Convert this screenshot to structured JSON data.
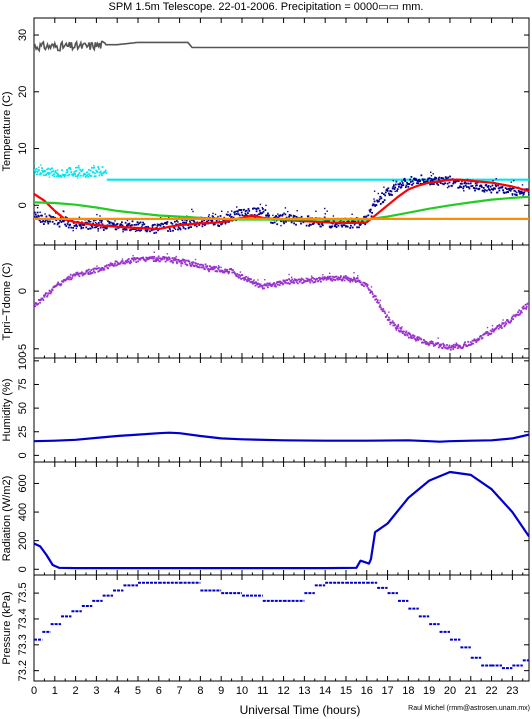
{
  "figure": {
    "title": "SPM 1.5m Telescope. 22-01-2006. Precipitation = 0000▭▭ mm.",
    "xlabel": "Universal Time (hours)",
    "credit": "Raul Michel  (rmm@astrosen.unam.mx)"
  },
  "chart_data": [
    {
      "type": "line",
      "ylabel": "Temperature (C)",
      "xlim": [
        0,
        23.8
      ],
      "ylim": [
        -7,
        33
      ],
      "yticks": [
        0,
        10,
        20,
        30
      ],
      "xticks": [
        0,
        1,
        2,
        3,
        4,
        5,
        6,
        7,
        8,
        9,
        10,
        11,
        12,
        13,
        14,
        15,
        16,
        17,
        18,
        19,
        20,
        21,
        22,
        23
      ],
      "series": [
        {
          "color": "#555555",
          "style": "noisy",
          "x": [
            0,
            0.5,
            1,
            1.5,
            2,
            2.5,
            3,
            3.5,
            4,
            4.5,
            5,
            5.5,
            6,
            6.5,
            7,
            7.4,
            7.6,
            8,
            10,
            12,
            14,
            16,
            18,
            20,
            22,
            23.8
          ],
          "y": [
            28,
            28,
            28,
            28,
            28,
            28,
            28.2,
            28.3,
            28.3,
            28.5,
            28.7,
            28.7,
            28.7,
            28.7,
            28.7,
            28.7,
            27.8,
            27.8,
            27.8,
            27.8,
            27.8,
            27.8,
            27.8,
            27.8,
            27.8,
            27.8
          ]
        },
        {
          "color": "#00e5ee",
          "style": "dots",
          "x": [
            0,
            0.5,
            1,
            1.5,
            2,
            2.5,
            3,
            3.3,
            3.5
          ],
          "y": [
            5.8,
            5.9,
            5.7,
            5.8,
            5.9,
            5.7,
            5.9,
            6.0,
            5.6
          ]
        },
        {
          "color": "#00e5ee",
          "style": "line",
          "x": [
            3.5,
            23.8
          ],
          "y": [
            4.5,
            4.5
          ]
        },
        {
          "color": "#00008b",
          "style": "scatter",
          "x": [
            0,
            0.5,
            1,
            1.5,
            2,
            3,
            4,
            5,
            5.5,
            6,
            6.5,
            7,
            8,
            9,
            10,
            10.5,
            11,
            11.5,
            12,
            13,
            14,
            15,
            15.5,
            16,
            16.5,
            17,
            17.5,
            18,
            18.5,
            19,
            20,
            21,
            22,
            23,
            23.8
          ],
          "y": [
            -2,
            -2.5,
            -2.8,
            -3,
            -3.2,
            -3.5,
            -3.5,
            -3.8,
            -4,
            -4.2,
            -3.8,
            -3.5,
            -3,
            -2.8,
            -1.5,
            -1.2,
            -1.5,
            -2.5,
            -2.5,
            -2.8,
            -3,
            -3.2,
            -3.2,
            -2.5,
            0.5,
            2,
            3.5,
            4,
            4.5,
            4.5,
            4.2,
            3.5,
            3,
            2.5,
            2
          ]
        },
        {
          "color": "#ff0000",
          "style": "line",
          "x": [
            0,
            0.5,
            1,
            1.5,
            2,
            3,
            4,
            5,
            5.5,
            6,
            6.5,
            7,
            8,
            9,
            10,
            10.5,
            11,
            12,
            13,
            14,
            15,
            15.5,
            16,
            16.5,
            17,
            17.5,
            18,
            18.5,
            19,
            19.5,
            20,
            20.5,
            21,
            22,
            23,
            23.8
          ],
          "y": [
            2,
            0.8,
            -1,
            -2.5,
            -3,
            -3.5,
            -3.8,
            -4,
            -4.1,
            -4.2,
            -3.8,
            -3.5,
            -3.2,
            -3,
            -2.2,
            -1.8,
            -2.2,
            -2.6,
            -2.8,
            -3,
            -3.1,
            -3.1,
            -3,
            -1.5,
            0,
            1.5,
            2.8,
            3.5,
            4,
            4.2,
            4.5,
            4.5,
            4.3,
            4,
            3.3,
            2.5
          ]
        },
        {
          "color": "#22cc22",
          "style": "line",
          "x": [
            0,
            1,
            2,
            3,
            4,
            5,
            6,
            7,
            8,
            9,
            10,
            12,
            14,
            16,
            17,
            18,
            19,
            20,
            21,
            22,
            23,
            23.8
          ],
          "y": [
            0.5,
            0.4,
            0.1,
            -0.4,
            -1,
            -1.4,
            -1.8,
            -2,
            -2.2,
            -2.4,
            -2.5,
            -2.5,
            -2.5,
            -2.5,
            -2,
            -1.3,
            -0.6,
            0,
            0.5,
            1,
            1.3,
            1.5
          ]
        },
        {
          "color": "#ff8c00",
          "style": "line",
          "x": [
            0,
            2,
            4,
            6,
            8,
            10,
            12,
            14,
            16,
            18,
            20,
            22,
            23.8
          ],
          "y": [
            -2.4,
            -2.4,
            -2.4,
            -2.4,
            -2.4,
            -2.4,
            -2.4,
            -2.4,
            -2.4,
            -2.4,
            -2.4,
            -2.4,
            -2.4
          ]
        }
      ]
    },
    {
      "type": "scatter",
      "ylabel": "Tpri−Tdome (C)",
      "xlim": [
        0,
        23.8
      ],
      "ylim": [
        -5.8,
        4
      ],
      "yticks": [
        -5,
        0
      ],
      "xticks": [
        0,
        1,
        2,
        3,
        4,
        5,
        6,
        7,
        8,
        9,
        10,
        11,
        12,
        13,
        14,
        15,
        16,
        17,
        18,
        19,
        20,
        21,
        22,
        23
      ],
      "series": [
        {
          "color": "#9932cc",
          "style": "scatter",
          "x": [
            0,
            0.5,
            1,
            1.5,
            2,
            2.5,
            3,
            3.5,
            4,
            4.5,
            5,
            5.5,
            6,
            6.5,
            7,
            7.5,
            8,
            8.5,
            9,
            9.5,
            10,
            10.5,
            11,
            11.5,
            12,
            13,
            14,
            15,
            15.5,
            16,
            16.5,
            17,
            17.5,
            18,
            18.5,
            19,
            19.5,
            20,
            20.5,
            21,
            21.5,
            22,
            22.5,
            23,
            23.5,
            23.8
          ],
          "y": [
            -1.3,
            -0.5,
            0.3,
            1,
            1.4,
            1.6,
            1.8,
            2.1,
            2.4,
            2.6,
            2.7,
            2.8,
            2.8,
            2.7,
            2.6,
            2.4,
            2.2,
            2,
            1.8,
            1.7,
            1.2,
            0.8,
            0.4,
            0.5,
            0.8,
            0.9,
            1,
            1.1,
            1,
            0.5,
            -0.8,
            -2.3,
            -3.2,
            -3.8,
            -4.2,
            -4.5,
            -4.7,
            -4.9,
            -4.8,
            -4.5,
            -4,
            -3.5,
            -3,
            -2.4,
            -1.6,
            -1.2
          ]
        }
      ]
    },
    {
      "type": "line",
      "ylabel": "Humidity (%)",
      "xlim": [
        0,
        23.8
      ],
      "ylim": [
        -7,
        103
      ],
      "yticks": [
        0,
        25,
        50,
        75,
        100
      ],
      "xticks": [
        0,
        1,
        2,
        3,
        4,
        5,
        6,
        7,
        8,
        9,
        10,
        11,
        12,
        13,
        14,
        15,
        16,
        17,
        18,
        19,
        20,
        21,
        22,
        23
      ],
      "series": [
        {
          "color": "#0000cd",
          "style": "line",
          "x": [
            0,
            1,
            2,
            3,
            4,
            5,
            6,
            6.5,
            7,
            8,
            9,
            10,
            12,
            14,
            16,
            18,
            19,
            19.5,
            20,
            21,
            22,
            23,
            23.8
          ],
          "y": [
            15,
            15.5,
            16.5,
            18.5,
            20.5,
            22,
            23.5,
            24,
            23.5,
            20.5,
            18,
            17,
            16,
            15.5,
            15.5,
            16,
            15,
            14.5,
            15,
            15.5,
            16,
            18,
            22
          ]
        }
      ]
    },
    {
      "type": "line",
      "ylabel": "Radiation (W/m2)",
      "xlim": [
        0,
        23.8
      ],
      "ylim": [
        -40,
        750
      ],
      "yticks": [
        0,
        200,
        400,
        600
      ],
      "xticks": [
        0,
        1,
        2,
        3,
        4,
        5,
        6,
        7,
        8,
        9,
        10,
        11,
        12,
        13,
        14,
        15,
        16,
        17,
        18,
        19,
        20,
        21,
        22,
        23
      ],
      "series": [
        {
          "color": "#0000cd",
          "style": "line",
          "x": [
            0,
            0.3,
            0.6,
            0.9,
            1.2,
            2,
            4,
            6,
            8,
            10,
            12,
            14,
            15.5,
            15.7,
            15.9,
            16.1,
            16.2,
            16.4,
            17,
            18,
            19,
            20,
            21,
            22,
            23,
            23.8
          ],
          "y": [
            180,
            160,
            100,
            30,
            10,
            8,
            8,
            8,
            8,
            8,
            8,
            8,
            10,
            60,
            50,
            40,
            70,
            260,
            320,
            500,
            620,
            680,
            660,
            560,
            400,
            230
          ]
        }
      ]
    },
    {
      "type": "scatter",
      "ylabel": "Pressure (kPa)",
      "xlim": [
        0,
        23.8
      ],
      "ylim": [
        73.16,
        73.57
      ],
      "yticks": [
        73.2,
        73.3,
        73.4,
        73.5
      ],
      "ytick_labels": [
        "73.2",
        "73.3",
        "73.4",
        "73.5"
      ],
      "xticks": [
        0,
        1,
        2,
        3,
        4,
        5,
        6,
        7,
        8,
        9,
        10,
        11,
        12,
        13,
        14,
        15,
        16,
        17,
        18,
        19,
        20,
        21,
        22,
        23
      ],
      "series": [
        {
          "color": "#0000cd",
          "style": "steps",
          "x": [
            0,
            0.4,
            0.8,
            1.3,
            1.8,
            2.3,
            2.8,
            3.3,
            3.8,
            4.3,
            5,
            6,
            7,
            8,
            9,
            10,
            11,
            12,
            13,
            13.5,
            14,
            15,
            16,
            16.5,
            17,
            17.5,
            18,
            18.5,
            19,
            19.5,
            20,
            20.5,
            21,
            21.5,
            22,
            22.5,
            23,
            23.5,
            23.8
          ],
          "y": [
            73.32,
            73.35,
            73.38,
            73.41,
            73.43,
            73.45,
            73.47,
            73.49,
            73.51,
            73.53,
            73.54,
            73.54,
            73.54,
            73.51,
            73.5,
            73.49,
            73.47,
            73.47,
            73.5,
            73.53,
            73.54,
            73.54,
            73.54,
            73.52,
            73.5,
            73.47,
            73.44,
            73.41,
            73.38,
            73.35,
            73.32,
            73.29,
            73.25,
            73.22,
            73.22,
            73.21,
            73.22,
            73.24,
            73.24
          ]
        }
      ]
    }
  ]
}
